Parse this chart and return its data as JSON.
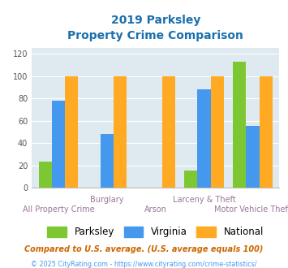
{
  "title_line1": "2019 Parksley",
  "title_line2": "Property Crime Comparison",
  "categories": [
    "All Property Crime",
    "Burglary",
    "Arson",
    "Larceny & Theft",
    "Motor Vehicle Theft"
  ],
  "parksley": [
    23,
    0,
    0,
    15,
    113
  ],
  "virginia": [
    78,
    48,
    0,
    88,
    55
  ],
  "national": [
    100,
    100,
    100,
    100,
    100
  ],
  "bar_width": 0.27,
  "colors": {
    "parksley": "#7dc832",
    "virginia": "#4499ee",
    "national": "#ffaa22"
  },
  "ylim": [
    0,
    125
  ],
  "yticks": [
    0,
    20,
    40,
    60,
    80,
    100,
    120
  ],
  "xlabel_color": "#997799",
  "title_color": "#1a6fad",
  "bg_color": "#deeaf0",
  "legend_labels": [
    "Parksley",
    "Virginia",
    "National"
  ],
  "legend_text_color": "#000000",
  "footnote1": "Compared to U.S. average. (U.S. average equals 100)",
  "footnote2": "© 2025 CityRating.com - https://www.cityrating.com/crime-statistics/",
  "footnote1_color": "#cc6600",
  "footnote2_color": "#4499ee",
  "stagger_high": [
    "Burglary",
    "Larceny & Theft"
  ],
  "stagger_low": [
    "All Property Crime",
    "Arson",
    "Motor Vehicle Theft"
  ]
}
